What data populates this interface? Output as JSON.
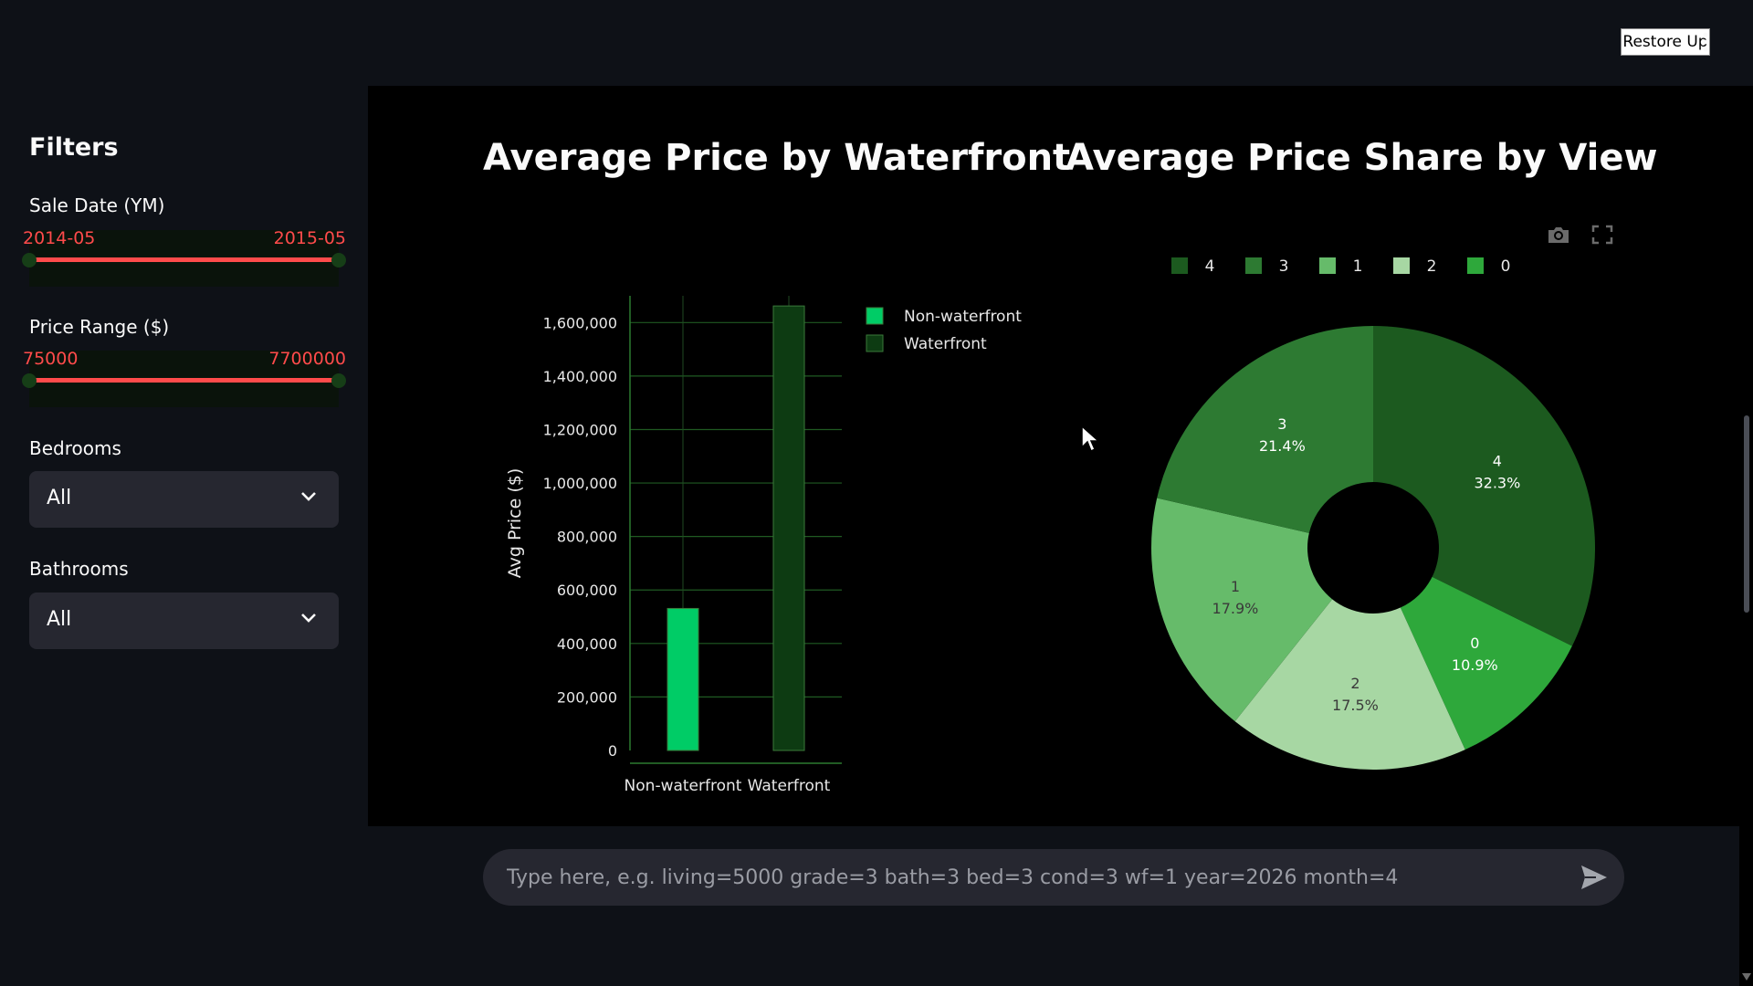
{
  "sidebar": {
    "title": "Filters",
    "sale_date": {
      "label": "Sale Date (YM)",
      "min": "2014-05",
      "max": "2015-05"
    },
    "price_range": {
      "label": "Price Range ($)",
      "min": "75000",
      "max": "7700000"
    },
    "bedrooms": {
      "label": "Bedrooms",
      "value": "All"
    },
    "bathrooms": {
      "label": "Bathrooms",
      "value": "All"
    },
    "slider_color": "#ff4b4b"
  },
  "header": {
    "restore_label": "Restore Up"
  },
  "chat": {
    "placeholder": "Type here, e.g. living=5000 grade=3 bath=3 bed=3 cond=3 wf=1 year=2026 month=4"
  },
  "icons": {
    "modebar": [
      "camera-icon",
      "fullscreen-icon"
    ],
    "send": "send-icon",
    "select": "chevron-down-icon"
  },
  "chart_data": [
    {
      "type": "bar",
      "title": "Average Price by Waterfront",
      "ylabel": "Avg Price ($)",
      "xlabel": "",
      "categories": [
        "Non-waterfront",
        "Waterfront"
      ],
      "values": [
        531000,
        1662000
      ],
      "colors": [
        "#00cc66",
        "#0d3b12"
      ],
      "legend": [
        "Non-waterfront",
        "Waterfront"
      ],
      "legend_position": "top-right",
      "ylim": [
        0,
        1700000
      ],
      "yticks": [
        0,
        200000,
        400000,
        600000,
        800000,
        1000000,
        1200000,
        1400000,
        1600000
      ],
      "ytick_labels": [
        "0",
        "200,000",
        "400,000",
        "600,000",
        "800,000",
        "1,000,000",
        "1,200,000",
        "1,400,000",
        "1,600,000"
      ],
      "grid": true
    },
    {
      "type": "pie",
      "title": "Average Price Share by View",
      "hole": true,
      "legend_position": "top",
      "slices": [
        {
          "label": "4",
          "value": 32.3,
          "text": "32.3%",
          "color": "#1c5a1f"
        },
        {
          "label": "0",
          "value": 10.9,
          "text": "10.9%",
          "color": "#2ea83b"
        },
        {
          "label": "2",
          "value": 17.5,
          "text": "17.5%",
          "color": "#a7d7a3"
        },
        {
          "label": "1",
          "value": 17.9,
          "text": "17.9%",
          "color": "#66bb6a"
        },
        {
          "label": "3",
          "value": 21.4,
          "text": "21.4%",
          "color": "#2d7a32"
        }
      ],
      "legend_order": [
        "4",
        "3",
        "1",
        "2",
        "0"
      ]
    }
  ]
}
